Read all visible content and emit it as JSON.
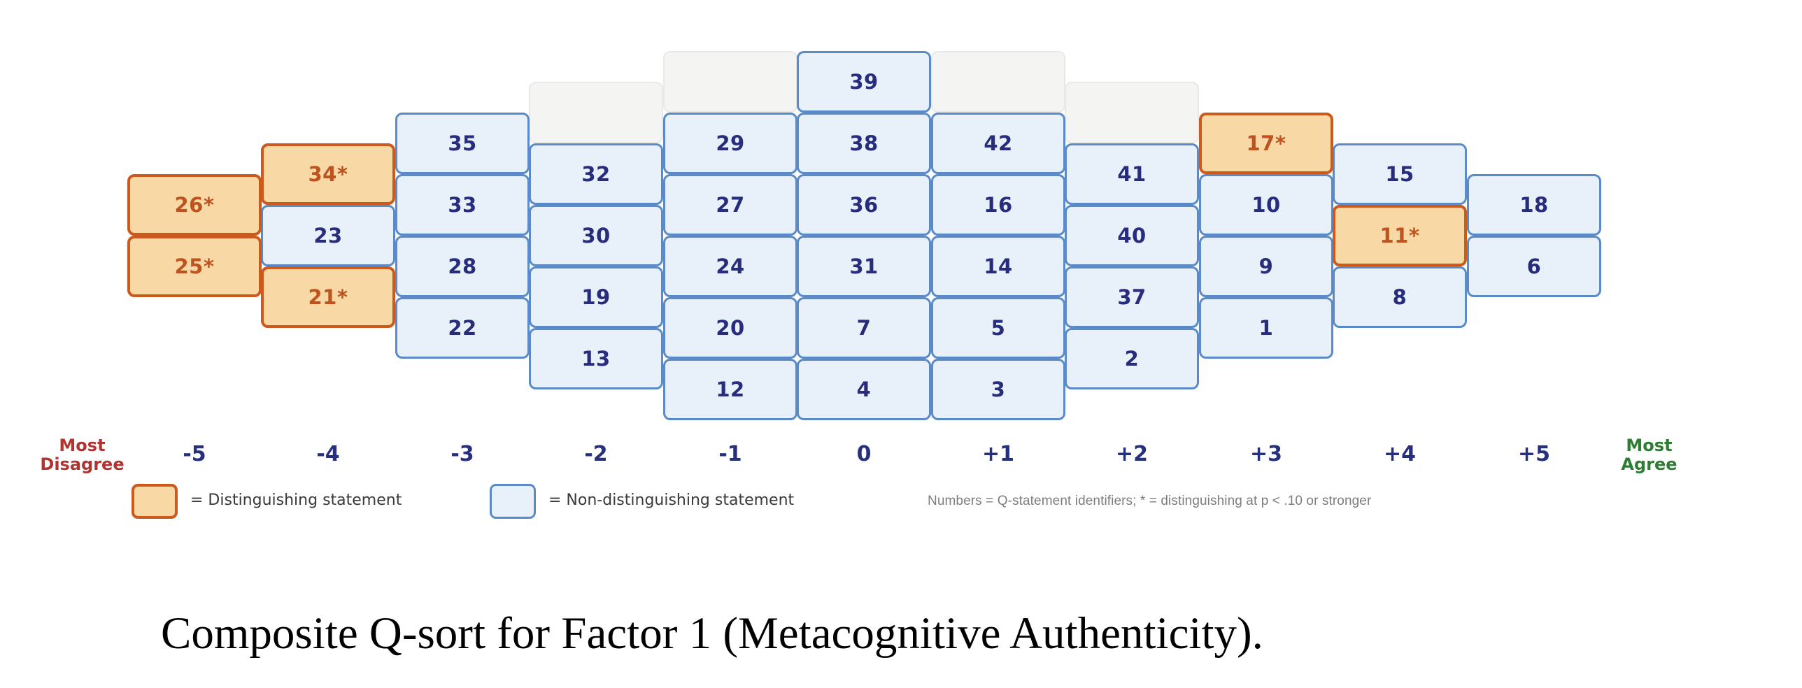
{
  "chart_data": {
    "type": "table",
    "subtype": "q-sort-pyramid",
    "x_tick_labels": [
      "-5",
      "-4",
      "-3",
      "-2",
      "-1",
      "0",
      "+1",
      "+2",
      "+3",
      "+4",
      "+5"
    ],
    "columns": [
      {
        "x": "-5",
        "row_start": 2,
        "placeholder_row": null,
        "cells": [
          {
            "id": "26*",
            "distinguishing": true
          },
          {
            "id": "25*",
            "distinguishing": true
          }
        ]
      },
      {
        "x": "-4",
        "row_start": 1.5,
        "placeholder_row": null,
        "cells": [
          {
            "id": "34*",
            "distinguishing": true
          },
          {
            "id": "23",
            "distinguishing": false
          },
          {
            "id": "21*",
            "distinguishing": true
          }
        ]
      },
      {
        "x": "-3",
        "row_start": 1,
        "placeholder_row": null,
        "cells": [
          {
            "id": "35",
            "distinguishing": false
          },
          {
            "id": "33",
            "distinguishing": false
          },
          {
            "id": "28",
            "distinguishing": false
          },
          {
            "id": "22",
            "distinguishing": false
          }
        ]
      },
      {
        "x": "-2",
        "row_start": 1.5,
        "placeholder_row": 0.5,
        "cells": [
          {
            "id": "32",
            "distinguishing": false
          },
          {
            "id": "30",
            "distinguishing": false
          },
          {
            "id": "19",
            "distinguishing": false
          },
          {
            "id": "13",
            "distinguishing": false
          }
        ]
      },
      {
        "x": "-1",
        "row_start": 1,
        "placeholder_row": 0,
        "cells": [
          {
            "id": "29",
            "distinguishing": false
          },
          {
            "id": "27",
            "distinguishing": false
          },
          {
            "id": "24",
            "distinguishing": false
          },
          {
            "id": "20",
            "distinguishing": false
          },
          {
            "id": "12",
            "distinguishing": false
          }
        ]
      },
      {
        "x": "0",
        "row_start": 0,
        "placeholder_row": null,
        "cells": [
          {
            "id": "39",
            "distinguishing": false
          },
          {
            "id": "38",
            "distinguishing": false
          },
          {
            "id": "36",
            "distinguishing": false
          },
          {
            "id": "31",
            "distinguishing": false
          },
          {
            "id": "7",
            "distinguishing": false
          },
          {
            "id": "4",
            "distinguishing": false
          }
        ]
      },
      {
        "x": "+1",
        "row_start": 1,
        "placeholder_row": 0,
        "cells": [
          {
            "id": "42",
            "distinguishing": false
          },
          {
            "id": "16",
            "distinguishing": false
          },
          {
            "id": "14",
            "distinguishing": false
          },
          {
            "id": "5",
            "distinguishing": false
          },
          {
            "id": "3",
            "distinguishing": false
          }
        ]
      },
      {
        "x": "+2",
        "row_start": 1.5,
        "placeholder_row": 0.5,
        "cells": [
          {
            "id": "41",
            "distinguishing": false
          },
          {
            "id": "40",
            "distinguishing": false
          },
          {
            "id": "37",
            "distinguishing": false
          },
          {
            "id": "2",
            "distinguishing": false
          }
        ]
      },
      {
        "x": "+3",
        "row_start": 1,
        "placeholder_row": null,
        "cells": [
          {
            "id": "17*",
            "distinguishing": true
          },
          {
            "id": "10",
            "distinguishing": false
          },
          {
            "id": "9",
            "distinguishing": false
          },
          {
            "id": "1",
            "distinguishing": false
          }
        ]
      },
      {
        "x": "+4",
        "row_start": 1.5,
        "placeholder_row": null,
        "cells": [
          {
            "id": "15",
            "distinguishing": false
          },
          {
            "id": "11*",
            "distinguishing": true
          },
          {
            "id": "8",
            "distinguishing": false
          }
        ]
      },
      {
        "x": "+5",
        "row_start": 2,
        "placeholder_row": null,
        "cells": [
          {
            "id": "18",
            "distinguishing": false
          },
          {
            "id": "6",
            "distinguishing": false
          }
        ]
      }
    ],
    "axis_anchors": {
      "left_line1": "Most",
      "left_line2": "Disagree",
      "right_line1": "Most",
      "right_line2": "Agree"
    },
    "legend": {
      "distinguishing": "= Distinguishing statement",
      "non_distinguishing": "= Non-distinguishing statement",
      "note": "Numbers = Q-statement identifiers; * = distinguishing at p < .10 or stronger"
    },
    "caption": "Composite Q-sort for Factor 1 (Metacognitive Authenticity).",
    "layout_hints": {
      "rows_total": 6,
      "grid": "on for pyramid cells only",
      "legend_position": "bottom-left",
      "axis_range": [
        "-5",
        "+5"
      ]
    },
    "colors": {
      "distinguishing_fill": "#f8d8a5",
      "distinguishing_border": "#cc5a1d",
      "distinguishing_text": "#bd531f",
      "non_distinguishing_fill": "#e8f1fa",
      "non_distinguishing_border": "#5a8bc8",
      "non_distinguishing_text": "#272c7c",
      "placeholder_fill": "#f4f4f3",
      "placeholder_border": "#e8e8e6",
      "axis_tick_text": "#26307d",
      "most_disagree_text": "#b23430",
      "most_agree_text": "#2f7d33",
      "legend_text": "#3a3a3a",
      "note_text": "#7d7d7d"
    }
  }
}
